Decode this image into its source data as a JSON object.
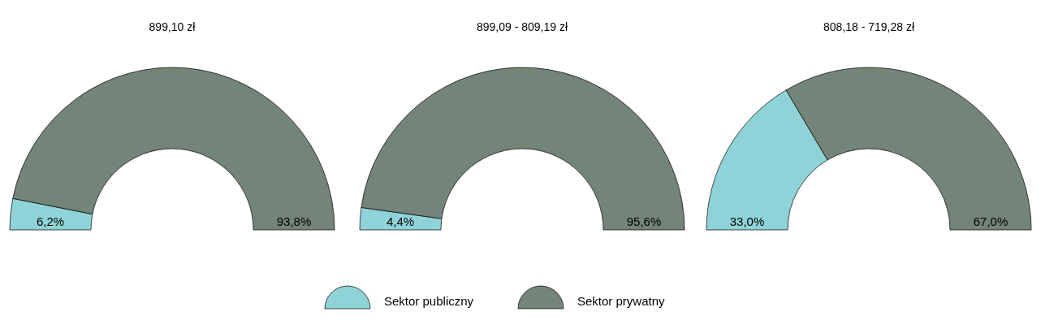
{
  "chart_data": [
    {
      "type": "donut",
      "title": "899,10 zł",
      "categories": [
        "Sektor publiczny",
        "Sektor prywatny"
      ],
      "values": [
        6.2,
        93.8
      ],
      "colors": [
        "#8fd3d8",
        "#738478"
      ],
      "value_labels": [
        "6,2%",
        "93,8%"
      ],
      "legend": "bottom"
    },
    {
      "type": "donut",
      "title": "899,09 - 809,19 zł",
      "categories": [
        null,
        null
      ],
      "values": [
        4.4,
        95.6
      ],
      "colors": [
        "#8fd3d8",
        "#738478"
      ],
      "value_labels": [
        "4,4%",
        "95,6%"
      ]
    },
    {
      "type": "donut",
      "title": "808,18 - 719,28 zł",
      "categories": [
        null,
        null
      ],
      "values": [
        33.0,
        67.0
      ],
      "colors": [
        "#8fd3d8",
        "#738478"
      ],
      "value_labels": [
        "33,0%",
        "67,0%"
      ]
    }
  ]
}
